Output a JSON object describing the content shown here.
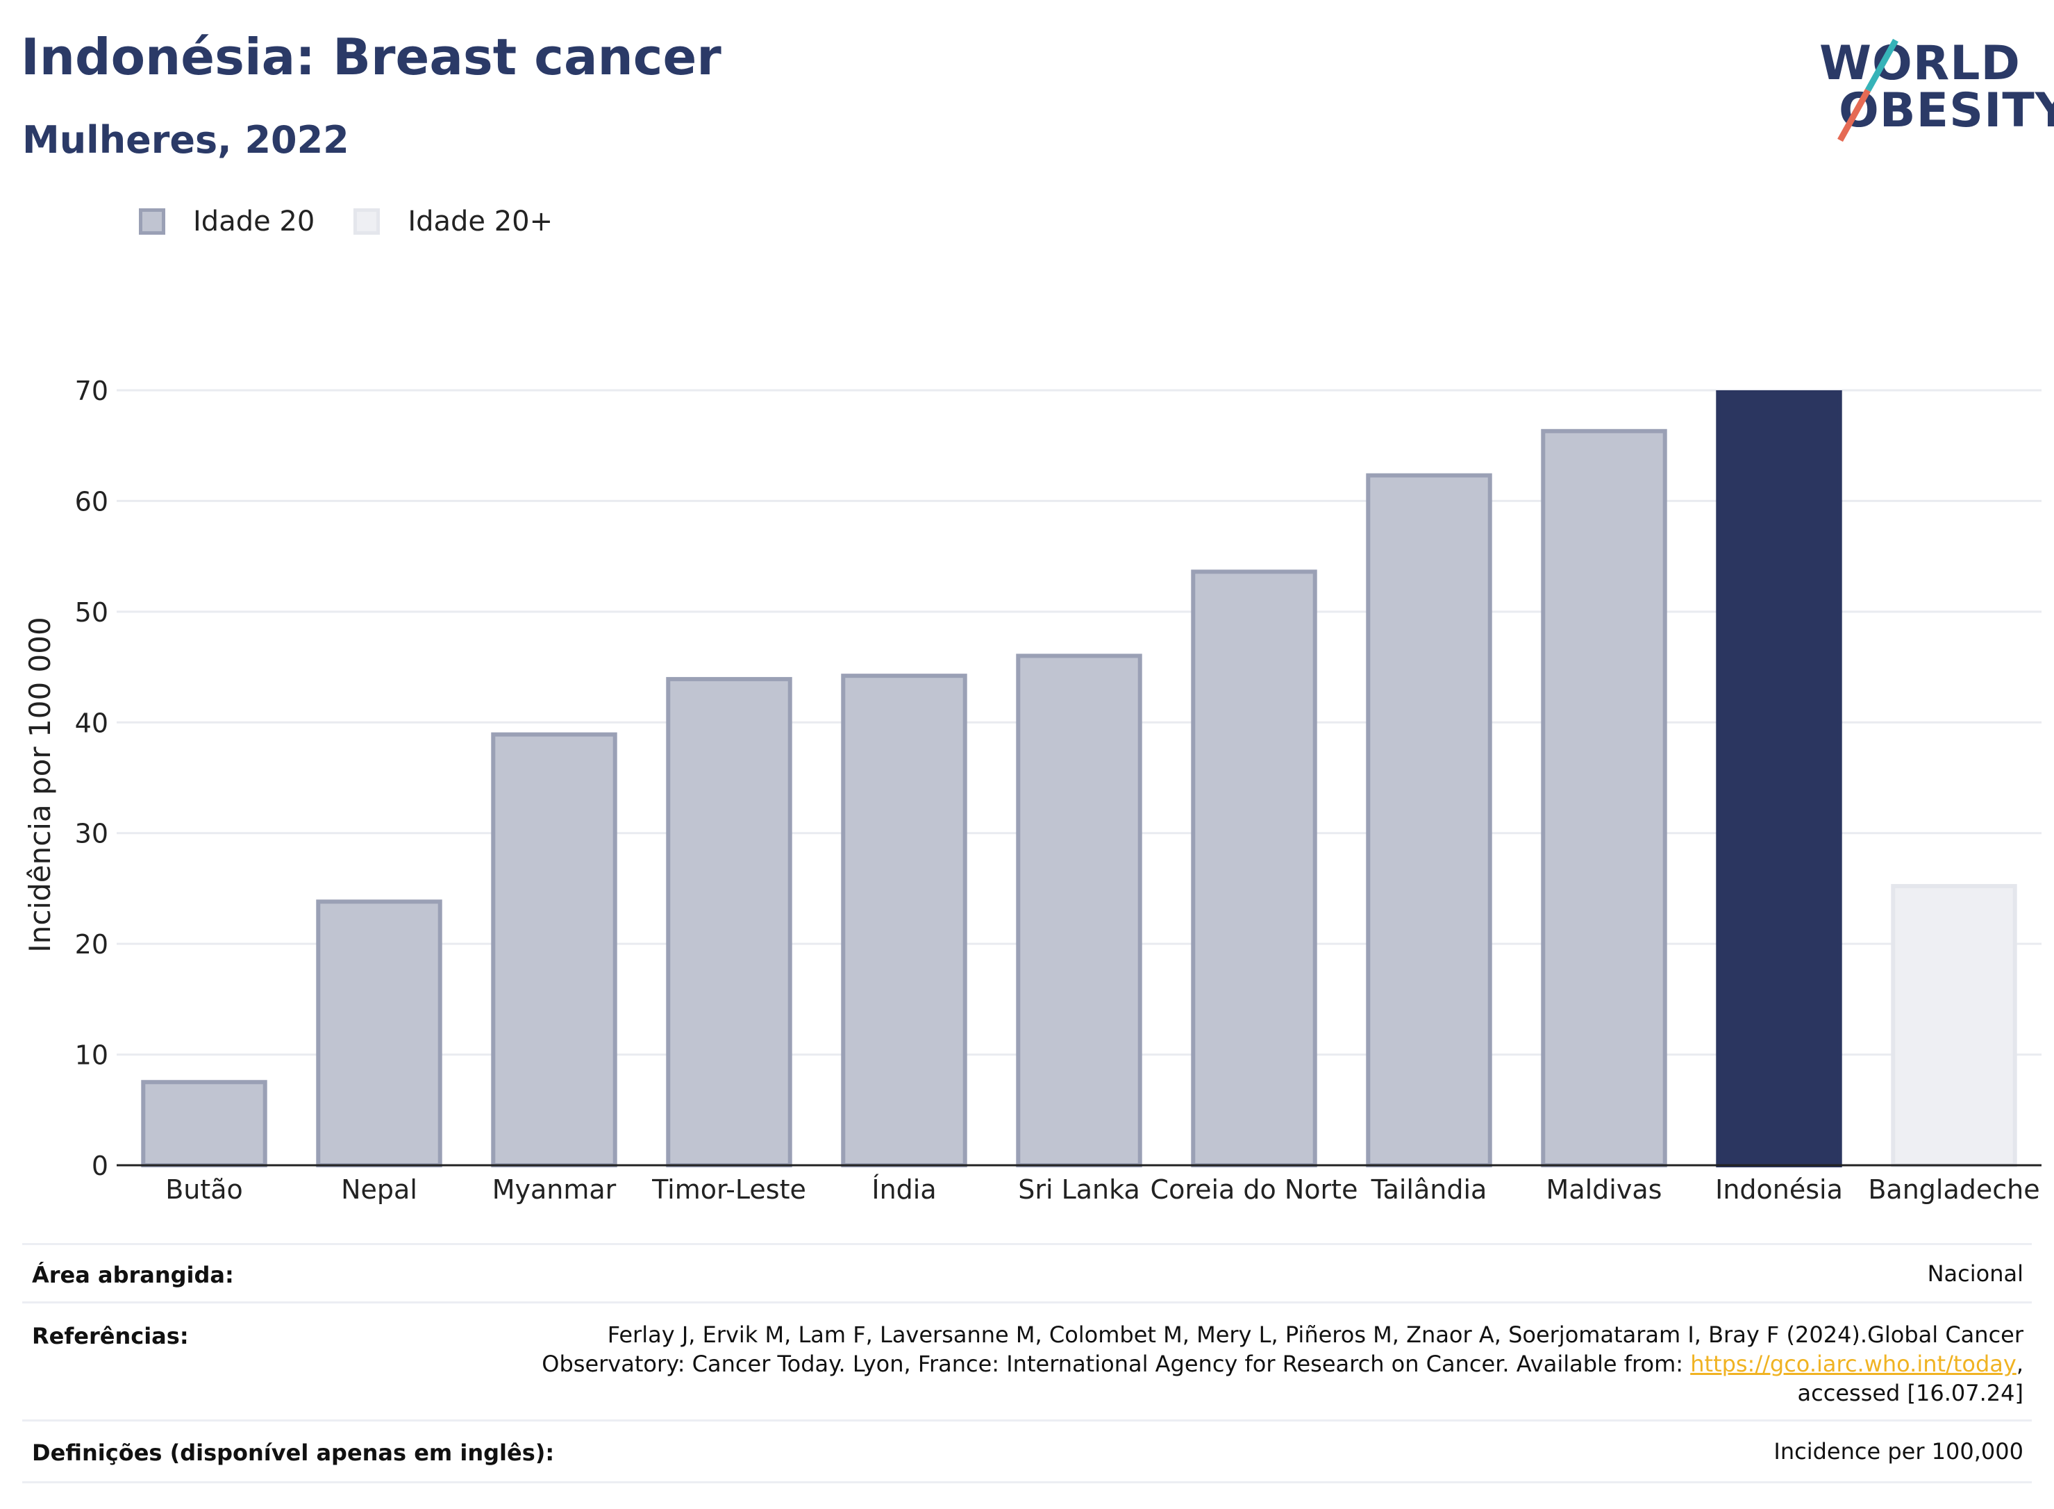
{
  "title": "Indonésia: Breast cancer",
  "subtitle": "Mulheres, 2022",
  "logo": {
    "line1": "WORLD",
    "line2": "OBESITY",
    "colors": [
      "#2b3a67",
      "#36b3b8",
      "#e56a54"
    ]
  },
  "legend": [
    {
      "label": "Idade 20",
      "color": "#c0c4d1"
    },
    {
      "label": "Idade 20+",
      "color": "#eeeff3"
    }
  ],
  "chart_data": {
    "type": "bar",
    "ylabel": "Incidência por 100 000",
    "ylim": [
      0,
      70
    ],
    "yticks": [
      0,
      10,
      20,
      30,
      40,
      50,
      60,
      70
    ],
    "grid": true,
    "categories": [
      "Butão",
      "Nepal",
      "Myanmar",
      "Timor-Leste",
      "Índia",
      "Sri Lanka",
      "Coreia do Norte",
      "Tailândia",
      "Maldivas",
      "Indonésia",
      "Bangladeche"
    ],
    "values": [
      7.7,
      24.0,
      39.1,
      44.1,
      44.4,
      46.2,
      53.8,
      62.5,
      66.5,
      70.0,
      25.4
    ],
    "highlight": "Indonésia",
    "colors": {
      "default": "#c0c4d1",
      "default_border": "#9aa0b5",
      "highlight": "#2b3660",
      "light": "#eeeff3",
      "light_border": "#e4e6ec"
    },
    "light_categories": [
      "Bangladeche"
    ]
  },
  "meta": {
    "area_label": "Área abrangida:",
    "area_value": "Nacional",
    "ref_label": "Referências:",
    "ref_line1": "Ferlay J, Ervik M, Lam F, Laversanne M, Colombet M, Mery L, Piñeros M, Znaor A, Soerjomataram I, Bray F (2024).Global Cancer",
    "ref_line2_pre": "Observatory: Cancer Today. Lyon, France: International Agency for Research on Cancer. Available from: ",
    "ref_link": "https://gco.iarc.who.int/today",
    "ref_line2_post": ",",
    "ref_line3": "accessed [16.07.24]",
    "def_label": "Definições (disponível apenas em inglês):",
    "def_value": "Incidence per 100,000"
  }
}
